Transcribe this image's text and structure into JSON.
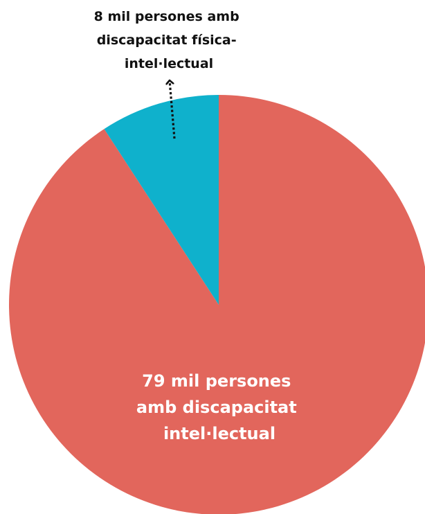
{
  "chart_data": {
    "type": "pie",
    "title": "",
    "slices": [
      {
        "value": 79,
        "color": "#e2665c",
        "label_lines": [
          "79 mil persones",
          "amb discapacitat",
          "intel·lectual"
        ]
      },
      {
        "value": 8,
        "color": "#0fb1cc",
        "label_lines": [
          "8 mil persones amb",
          "discapacitat física-",
          "intel·lectual"
        ]
      }
    ],
    "start_angle": "12 o'clock",
    "direction": "clockwise",
    "legend": "none"
  }
}
